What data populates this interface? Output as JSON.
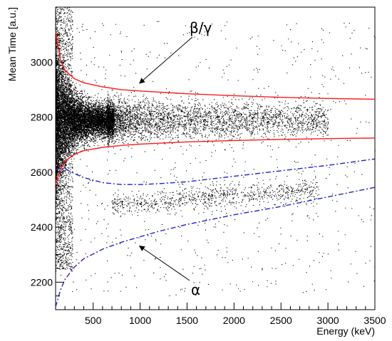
{
  "chart_data": {
    "type": "scatter",
    "title": "",
    "xlabel": "Energy (keV)",
    "ylabel": "Mean Time [a.u.]",
    "xlim": [
      100,
      3500
    ],
    "ylim": [
      2100,
      3200
    ],
    "x_ticks": [
      500,
      1000,
      1500,
      2000,
      2500,
      3000,
      3500
    ],
    "x_tick_labels": [
      "500",
      "1000",
      "1500",
      "2000",
      "2500",
      "3000",
      "3500"
    ],
    "y_ticks": [
      2200,
      2400,
      2600,
      2800,
      3000
    ],
    "y_tick_labels": [
      "2200",
      "2400",
      "2600",
      "2800",
      "3000"
    ],
    "grid": false,
    "legend": "none",
    "colors": {
      "points": "#000000",
      "beta_gamma_band": "#ff1a1a",
      "alpha_band": "#2222cc"
    },
    "populations": [
      {
        "label": "β/γ",
        "center_time": 2790,
        "description_points": "dense cloud, highest density at 100-700 keV, thinning to about 3000 keV",
        "energy_range": [
          100,
          3000
        ]
      },
      {
        "label": "α",
        "center_time": 2510,
        "energy_range": [
          700,
          2900
        ]
      }
    ],
    "series": [
      {
        "style": "solid",
        "color": "#ff1a1a",
        "x": [
          100,
          150,
          200,
          300,
          400,
          600,
          800,
          1000,
          1500,
          2000,
          2500,
          3000,
          3500
        ],
        "y": [
          3110,
          3010,
          2970,
          2940,
          2925,
          2910,
          2900,
          2895,
          2885,
          2878,
          2872,
          2868,
          2865
        ]
      },
      {
        "style": "solid",
        "color": "#ff1a1a",
        "x": [
          100,
          150,
          200,
          300,
          400,
          600,
          800,
          1000,
          1500,
          2000,
          2500,
          3000,
          3500
        ],
        "y": [
          2555,
          2610,
          2640,
          2665,
          2678,
          2690,
          2697,
          2702,
          2710,
          2715,
          2719,
          2722,
          2724
        ]
      },
      {
        "style": "dash-dot",
        "color": "#2222cc",
        "x": [
          100,
          150,
          200,
          300,
          400,
          600,
          800,
          1000,
          1200,
          1500,
          2000,
          2500,
          3000,
          3500
        ],
        "y": [
          2610,
          2615,
          2612,
          2595,
          2580,
          2562,
          2555,
          2555,
          2558,
          2565,
          2585,
          2605,
          2625,
          2648
        ]
      },
      {
        "style": "dash-dot",
        "color": "#2222cc",
        "x": [
          100,
          150,
          200,
          300,
          400,
          600,
          800,
          1000,
          1200,
          1500,
          2000,
          2500,
          3000,
          3500
        ],
        "y": [
          2110,
          2170,
          2210,
          2255,
          2285,
          2320,
          2345,
          2365,
          2385,
          2410,
          2445,
          2475,
          2510,
          2545
        ]
      }
    ],
    "annotations": [
      {
        "text": "β/γ",
        "arrow_to": [
          1000,
          2925
        ]
      },
      {
        "text": "α",
        "arrow_to": [
          1000,
          2330
        ]
      }
    ]
  }
}
